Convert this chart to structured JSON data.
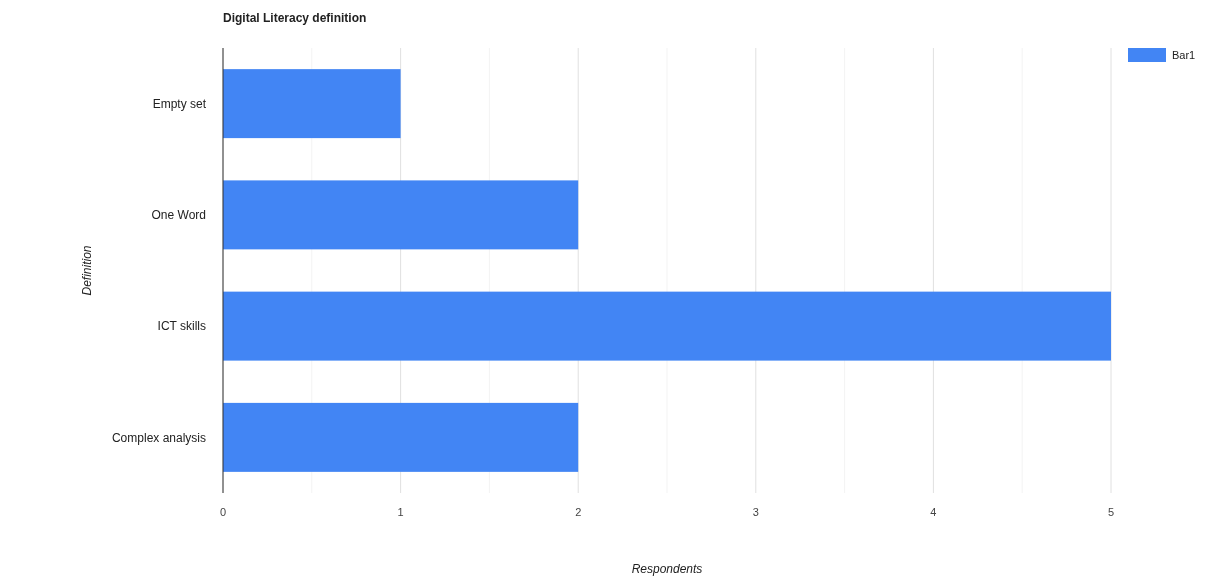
{
  "chart_data": {
    "type": "bar",
    "orientation": "horizontal",
    "title": "Digital Literacy definition",
    "xlabel": "Respondents",
    "ylabel": "Definition",
    "categories": [
      "Empty set",
      "One Word",
      "ICT skills",
      "Complex analysis"
    ],
    "series": [
      {
        "name": "Bar1",
        "color": "#4285f4",
        "values": [
          1,
          2,
          5,
          2
        ]
      }
    ],
    "xlim": [
      0,
      5
    ],
    "xticks": [
      0,
      {
        "value": 0.5,
        "label": null
      },
      1,
      {
        "value": 1.5,
        "label": null
      },
      2,
      {
        "value": 2.5,
        "label": null
      },
      3,
      {
        "value": 3.5,
        "label": null
      },
      4,
      {
        "value": 4.5,
        "label": null
      },
      5
    ],
    "grid": "x",
    "legend": "top right"
  }
}
